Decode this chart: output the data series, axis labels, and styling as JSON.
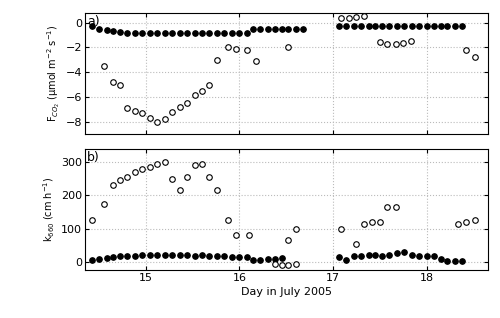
{
  "panel_a": {
    "open_circles": {
      "x": [
        14.55,
        14.65,
        14.72,
        14.8,
        14.88,
        14.96,
        15.04,
        15.12,
        15.2,
        15.28,
        15.36,
        15.44,
        15.52,
        15.6,
        15.68,
        15.76,
        15.88,
        15.96,
        16.08,
        16.18,
        16.52,
        17.08,
        17.17,
        17.25,
        17.33,
        17.5,
        17.58,
        17.67,
        17.75,
        17.83,
        18.42,
        18.52
      ],
      "y": [
        -3.5,
        -4.8,
        -5.0,
        -6.9,
        -7.1,
        -7.3,
        -7.7,
        -8.0,
        -7.8,
        -7.2,
        -6.8,
        -6.5,
        -5.8,
        -5.5,
        -5.0,
        -3.0,
        -2.0,
        -2.1,
        -2.2,
        -3.1,
        -2.0,
        0.35,
        0.4,
        0.45,
        0.5,
        -1.6,
        -1.7,
        -1.75,
        -1.65,
        -1.5,
        -2.2,
        -2.8
      ]
    },
    "filled_circles": {
      "x": [
        14.42,
        14.5,
        14.58,
        14.65,
        14.72,
        14.8,
        14.88,
        14.96,
        15.04,
        15.12,
        15.2,
        15.28,
        15.36,
        15.44,
        15.52,
        15.6,
        15.68,
        15.76,
        15.84,
        15.92,
        16.0,
        16.08,
        16.15,
        16.22,
        16.3,
        16.38,
        16.45,
        16.52,
        16.6,
        16.68,
        17.06,
        17.14,
        17.22,
        17.3,
        17.38,
        17.45,
        17.52,
        17.6,
        17.68,
        17.76,
        17.84,
        17.92,
        18.0,
        18.08,
        18.15,
        18.22,
        18.3,
        18.38
      ],
      "y": [
        -0.3,
        -0.5,
        -0.6,
        -0.7,
        -0.75,
        -0.8,
        -0.8,
        -0.85,
        -0.82,
        -0.82,
        -0.83,
        -0.83,
        -0.83,
        -0.83,
        -0.82,
        -0.82,
        -0.82,
        -0.82,
        -0.83,
        -0.82,
        -0.82,
        -0.82,
        -0.55,
        -0.55,
        -0.55,
        -0.5,
        -0.5,
        -0.5,
        -0.5,
        -0.5,
        -0.3,
        -0.28,
        -0.28,
        -0.28,
        -0.28,
        -0.28,
        -0.28,
        -0.28,
        -0.28,
        -0.28,
        -0.28,
        -0.28,
        -0.28,
        -0.28,
        -0.28,
        -0.28,
        -0.28,
        -0.28
      ]
    },
    "ylabel": "F$_{CO_2}$ (μmol m$^{-2}$ s$^{-1}$)",
    "ylim": [
      -9.0,
      0.8
    ],
    "yticks": [
      -8,
      -6,
      -4,
      -2,
      0
    ],
    "label": "a)"
  },
  "panel_b": {
    "open_circles": {
      "x": [
        14.42,
        14.55,
        14.65,
        14.72,
        14.8,
        14.88,
        14.96,
        15.04,
        15.12,
        15.2,
        15.28,
        15.36,
        15.44,
        15.52,
        15.6,
        15.68,
        15.76,
        15.88,
        15.96,
        16.1,
        16.52,
        16.6,
        17.08,
        17.25,
        17.33,
        17.42,
        17.5,
        17.58,
        17.67,
        18.33,
        18.42,
        18.52
      ],
      "y": [
        125,
        175,
        230,
        245,
        255,
        270,
        280,
        285,
        295,
        300,
        250,
        215,
        255,
        290,
        295,
        255,
        215,
        125,
        80,
        80,
        65,
        100,
        100,
        55,
        115,
        120,
        120,
        165,
        165,
        115,
        120,
        125
      ]
    },
    "filled_circles": {
      "x": [
        14.42,
        14.5,
        14.58,
        14.65,
        14.72,
        14.8,
        14.88,
        14.96,
        15.04,
        15.12,
        15.2,
        15.28,
        15.36,
        15.44,
        15.52,
        15.6,
        15.68,
        15.76,
        15.84,
        15.92,
        16.0,
        16.08,
        16.15,
        16.22,
        16.3,
        16.38,
        16.45,
        17.06,
        17.14,
        17.22,
        17.3,
        17.38,
        17.45,
        17.52,
        17.6,
        17.68,
        17.76,
        17.84,
        17.92,
        18.0,
        18.08,
        18.15,
        18.22,
        18.3,
        18.38
      ],
      "y": [
        5,
        8,
        12,
        15,
        17,
        18,
        19,
        20,
        21,
        20,
        21,
        21,
        20,
        20,
        19,
        20,
        18,
        18,
        17,
        16,
        16,
        16,
        5,
        5,
        10,
        10,
        12,
        15,
        7,
        18,
        18,
        20,
        20,
        18,
        22,
        28,
        30,
        20,
        18,
        17,
        18,
        10,
        3,
        3,
        3
      ]
    },
    "open_neg": {
      "x": [
        16.38,
        16.45,
        16.52,
        16.6
      ],
      "y": [
        -5,
        -8,
        -8,
        -5
      ]
    },
    "ylabel": "k$_{660}$ (cm h$^{-1}$)",
    "ylim": [
      -25,
      340
    ],
    "yticks": [
      0,
      100,
      200,
      300
    ],
    "label": "b)"
  },
  "xlim": [
    14.35,
    18.65
  ],
  "xticks": [
    15,
    16,
    17,
    18
  ],
  "xticklabels": [
    "15",
    "16",
    "17",
    "18"
  ],
  "xlabel": "Day in July 2005",
  "marker_size": 4,
  "grid_color": "#bbbbbb",
  "vline_color": "#bbbbbb"
}
